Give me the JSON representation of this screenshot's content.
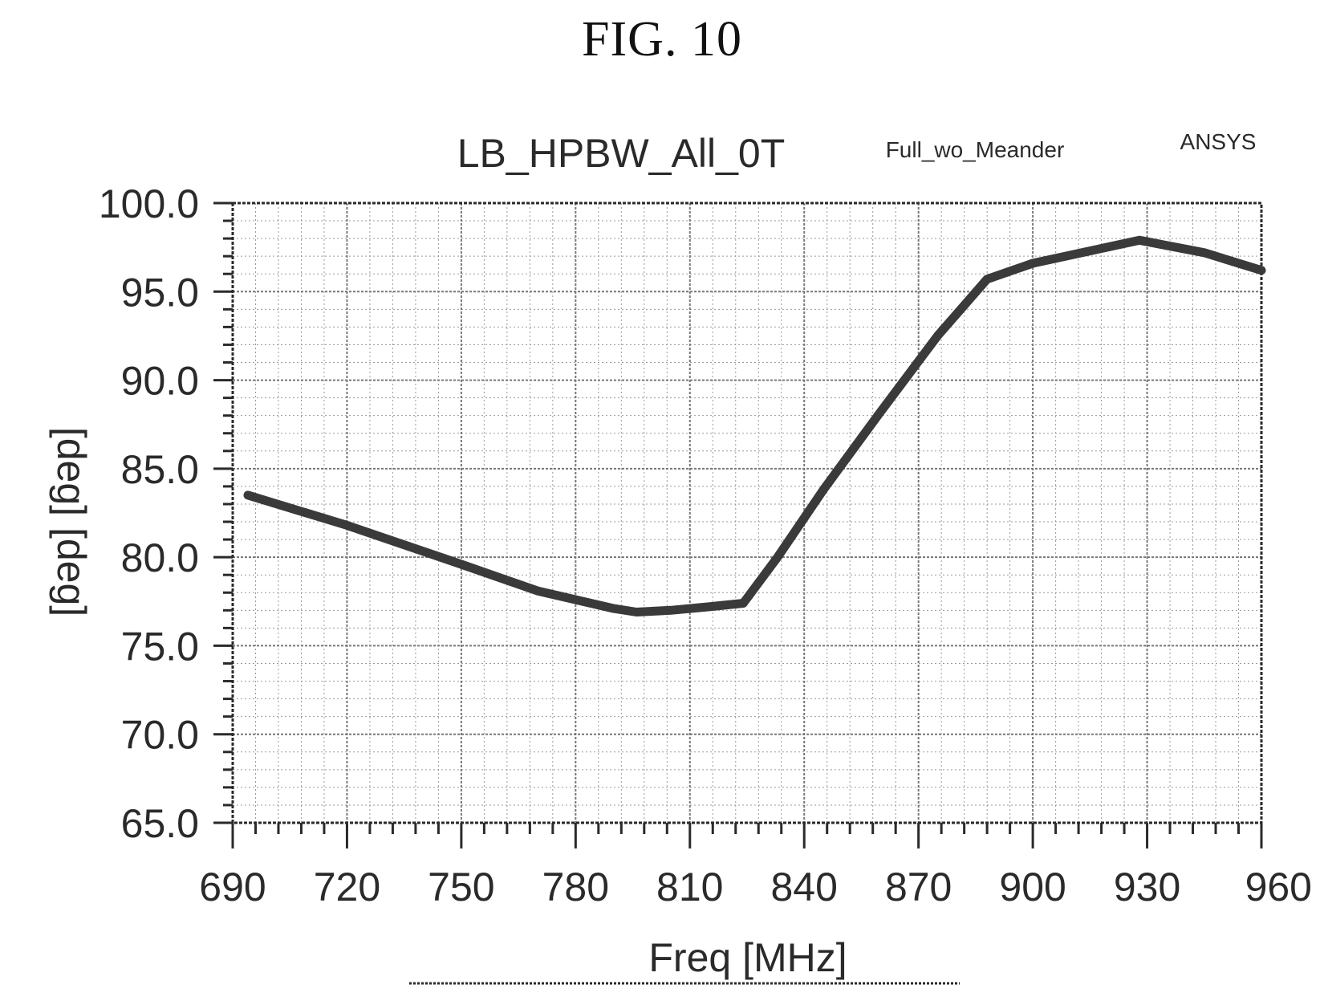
{
  "figure": {
    "label": "FIG. 10"
  },
  "chart_data": {
    "type": "line",
    "title": "LB_HPBW_All_0T",
    "subtitle": "Full_wo_Meander",
    "brand": "ANSYS",
    "xlabel": "Freq [MHz]",
    "ylabel": "[deg] [deg]",
    "xlim": [
      690,
      960
    ],
    "ylim": [
      65.0,
      100.0
    ],
    "xticks": [
      "690",
      "720",
      "750",
      "780",
      "810",
      "840",
      "870",
      "900",
      "930",
      "960"
    ],
    "yticks": [
      "100.0",
      "95.0",
      "90.0",
      "85.0",
      "80.0",
      "75.0",
      "70.0",
      "65.0"
    ],
    "grid": true,
    "series": [
      {
        "x": [
          694,
          720,
          750,
          770,
          790,
          796,
          805,
          815,
          824,
          833,
          845,
          860,
          875,
          888,
          900,
          915,
          928,
          945,
          960
        ],
        "y": [
          83.5,
          81.8,
          79.6,
          78.1,
          77.1,
          76.9,
          77.0,
          77.2,
          77.4,
          80.0,
          83.8,
          88.2,
          92.5,
          95.7,
          96.6,
          97.3,
          97.9,
          97.2,
          96.2
        ]
      }
    ],
    "colors": {
      "line": "#3a3a3a",
      "grid": "#9a9a9a",
      "axis": "#2a2a2a"
    }
  }
}
